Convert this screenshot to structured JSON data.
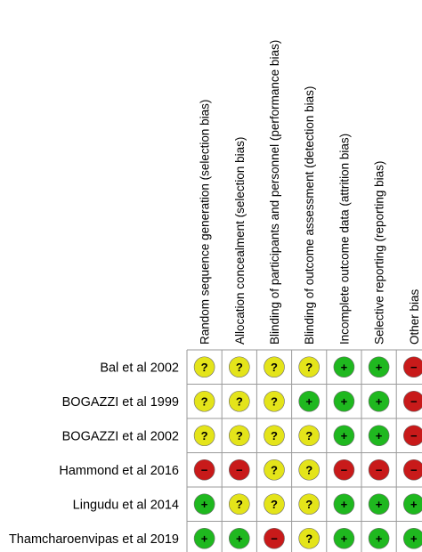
{
  "chart_data": {
    "type": "table",
    "domains": [
      "Random sequence generation (selection bias)",
      "Allocation concealment (selection bias)",
      "Blinding of participants and personnel (performance bias)",
      "Blinding of outcome assessment (detection bias)",
      "Incomplete outcome data (attrition bias)",
      "Selective reporting (reporting bias)",
      "Other bias"
    ],
    "studies": [
      "Bal et al 2002",
      "BOGAZZI et al 1999",
      "BOGAZZI et al 2002",
      "Hammond et al 2016",
      "Lingudu et al 2014",
      "Thamcharoenvipas et al 2019"
    ],
    "judgements": [
      [
        "unclear",
        "unclear",
        "unclear",
        "unclear",
        "low",
        "low",
        "high"
      ],
      [
        "unclear",
        "unclear",
        "unclear",
        "low",
        "low",
        "low",
        "high"
      ],
      [
        "unclear",
        "unclear",
        "unclear",
        "unclear",
        "low",
        "low",
        "high"
      ],
      [
        "high",
        "high",
        "unclear",
        "unclear",
        "high",
        "high",
        "high"
      ],
      [
        "low",
        "unclear",
        "unclear",
        "unclear",
        "low",
        "low",
        "low"
      ],
      [
        "low",
        "low",
        "high",
        "unclear",
        "low",
        "low",
        "low"
      ]
    ],
    "legend_symbols": {
      "low": "+",
      "unclear": "?",
      "high": "−"
    },
    "colors": {
      "low": "#1fb81f",
      "unclear": "#e4e41a",
      "high": "#c81a1a",
      "grid": "#9a9a9a"
    }
  }
}
